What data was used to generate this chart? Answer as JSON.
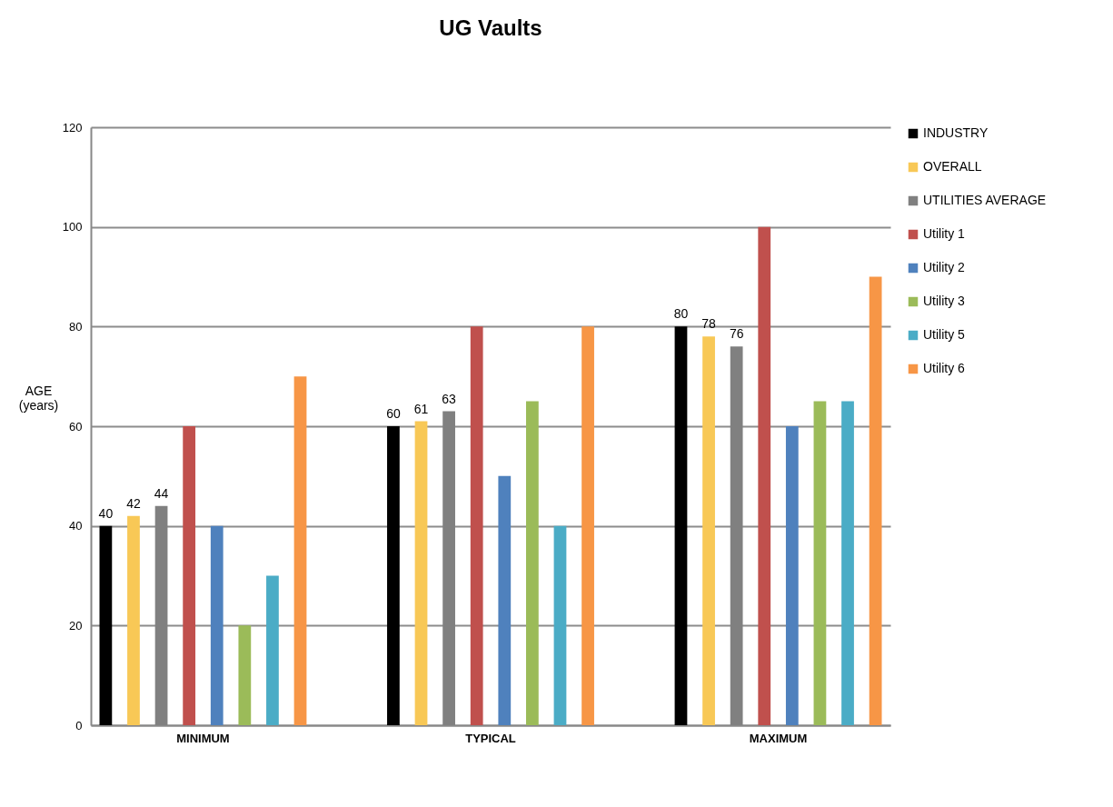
{
  "chart_data": {
    "type": "bar",
    "title": "UG Vaults",
    "ylabel": "AGE (years)",
    "categories": [
      "MINIMUM",
      "TYPICAL",
      "MAXIMUM"
    ],
    "series": [
      {
        "name": "INDUSTRY",
        "color": "#000000",
        "values": [
          40,
          60,
          80
        ],
        "value_labels": [
          "40",
          "60",
          "80"
        ]
      },
      {
        "name": "OVERALL",
        "color": "#f8c856",
        "values": [
          42,
          61,
          78
        ],
        "value_labels": [
          "42",
          "61",
          "78"
        ]
      },
      {
        "name": "UTILITIES AVERAGE",
        "color": "#808080",
        "values": [
          44,
          63,
          76
        ],
        "value_labels": [
          "44",
          "63",
          "76"
        ]
      },
      {
        "name": "Utility 1",
        "color": "#c0504d",
        "values": [
          60,
          80,
          100
        ]
      },
      {
        "name": "Utility 2",
        "color": "#4f81bd",
        "values": [
          40,
          50,
          60
        ]
      },
      {
        "name": "Utility 3",
        "color": "#9bbb59",
        "values": [
          20,
          65,
          65
        ]
      },
      {
        "name": "Utility 5",
        "color": "#4bacc6",
        "values": [
          30,
          40,
          65
        ]
      },
      {
        "name": "Utility 6",
        "color": "#f79646",
        "values": [
          70,
          80,
          90
        ]
      }
    ],
    "ylim": [
      0,
      120
    ],
    "yticks": [
      0,
      20,
      40,
      60,
      80,
      100,
      120
    ],
    "grid": "y",
    "legend": "right"
  }
}
